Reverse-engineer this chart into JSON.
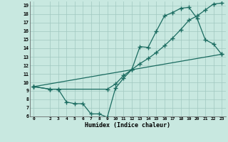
{
  "xlabel": "Humidex (Indice chaleur)",
  "background_color": "#c8e8e0",
  "grid_color": "#a0c8c0",
  "line_color": "#1a6b60",
  "xlim": [
    -0.5,
    23.5
  ],
  "ylim": [
    6,
    19.5
  ],
  "xticks": [
    0,
    2,
    3,
    4,
    5,
    6,
    7,
    8,
    9,
    10,
    11,
    12,
    13,
    14,
    15,
    16,
    17,
    18,
    19,
    20,
    21,
    22,
    23
  ],
  "yticks": [
    6,
    7,
    8,
    9,
    10,
    11,
    12,
    13,
    14,
    15,
    16,
    17,
    18,
    19
  ],
  "series1_x": [
    0,
    2,
    3,
    4,
    5,
    6,
    7,
    8,
    9,
    10,
    11,
    12,
    13,
    14,
    15,
    16,
    17,
    18,
    19,
    20,
    21,
    22,
    23
  ],
  "series1_y": [
    9.5,
    9.2,
    9.2,
    7.7,
    7.5,
    7.5,
    6.3,
    6.3,
    5.9,
    9.3,
    10.5,
    11.5,
    14.2,
    14.1,
    16.0,
    17.8,
    18.2,
    18.7,
    18.8,
    17.5,
    15.0,
    14.5,
    13.3
  ],
  "series2_x": [
    0,
    2,
    3,
    9,
    10,
    11,
    12,
    13,
    14,
    15,
    16,
    17,
    18,
    19,
    20,
    21,
    22,
    23
  ],
  "series2_y": [
    9.5,
    9.2,
    9.2,
    9.2,
    9.8,
    10.8,
    11.5,
    12.2,
    12.8,
    13.5,
    14.3,
    15.2,
    16.2,
    17.3,
    17.8,
    18.5,
    19.2,
    19.3
  ],
  "series3_x": [
    0,
    23
  ],
  "series3_y": [
    9.5,
    13.3
  ]
}
